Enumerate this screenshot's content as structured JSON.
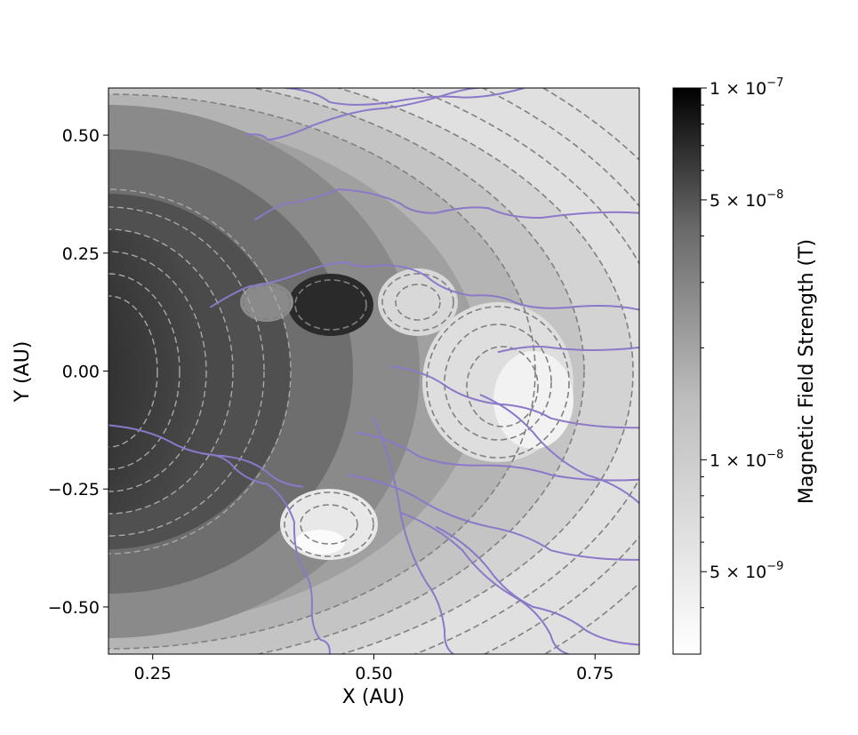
{
  "chart_data": {
    "type": "heatmap",
    "title": "",
    "xlabel": "X (AU)",
    "ylabel": "Y (AU)",
    "xlim": [
      0.2,
      0.8
    ],
    "ylim": [
      -0.6,
      0.6
    ],
    "x_ticks": [
      {
        "value": 0.25,
        "label": "0.25"
      },
      {
        "value": 0.5,
        "label": "0.50"
      },
      {
        "value": 0.75,
        "label": "0.75"
      }
    ],
    "y_ticks": [
      {
        "value": 0.5,
        "label": "0.50"
      },
      {
        "value": 0.25,
        "label": "0.25"
      },
      {
        "value": 0.0,
        "label": "0.00"
      },
      {
        "value": -0.25,
        "label": "−0.25"
      },
      {
        "value": -0.5,
        "label": "−0.50"
      }
    ],
    "colorbar": {
      "label": "Magnetic Field Strength (T)",
      "scale": "log",
      "range": [
        3e-09,
        1e-07
      ],
      "ticks": [
        {
          "value": 1e-07,
          "label": "1 × 10",
          "exp": "−7"
        },
        {
          "value": 5e-08,
          "label": "5 × 10",
          "exp": "−8"
        },
        {
          "value": 1e-08,
          "label": "1 × 10",
          "exp": "−8"
        },
        {
          "value": 5e-09,
          "label": "5 × 10",
          "exp": "−9"
        }
      ],
      "colormap": "gray_r"
    },
    "contour_style": {
      "color": "#808080",
      "linestyle": "dashed"
    },
    "field_line_color": "#8c78c8",
    "field_lines": [
      {
        "points": [
          [
            0.4,
            0.6
          ],
          [
            0.45,
            0.57
          ],
          [
            0.52,
            0.57
          ],
          [
            0.6,
            0.58
          ],
          [
            0.67,
            0.6
          ]
        ]
      },
      {
        "points": [
          [
            0.355,
            0.5
          ],
          [
            0.38,
            0.49
          ],
          [
            0.43,
            0.52
          ],
          [
            0.5,
            0.555
          ],
          [
            0.58,
            0.585
          ],
          [
            0.63,
            0.6
          ]
        ]
      },
      {
        "points": [
          [
            0.365,
            0.32
          ],
          [
            0.4,
            0.355
          ],
          [
            0.46,
            0.385
          ],
          [
            0.53,
            0.355
          ],
          [
            0.57,
            0.335
          ],
          [
            0.63,
            0.345
          ],
          [
            0.69,
            0.325
          ],
          [
            0.8,
            0.335
          ]
        ]
      },
      {
        "points": [
          [
            0.315,
            0.135
          ],
          [
            0.36,
            0.18
          ],
          [
            0.42,
            0.21
          ],
          [
            0.47,
            0.23
          ],
          [
            0.51,
            0.225
          ],
          [
            0.56,
            0.2
          ],
          [
            0.61,
            0.16
          ],
          [
            0.66,
            0.145
          ],
          [
            0.72,
            0.135
          ],
          [
            0.8,
            0.13
          ]
        ]
      },
      {
        "points": [
          [
            0.2,
            -0.115
          ],
          [
            0.27,
            -0.15
          ],
          [
            0.33,
            -0.18
          ],
          [
            0.38,
            -0.215
          ],
          [
            0.42,
            -0.245
          ]
        ]
      },
      {
        "points": [
          [
            0.305,
            -0.175
          ],
          [
            0.34,
            -0.2
          ],
          [
            0.38,
            -0.24
          ],
          [
            0.41,
            -0.32
          ],
          [
            0.42,
            -0.42
          ],
          [
            0.43,
            -0.5
          ],
          [
            0.44,
            -0.57
          ],
          [
            0.45,
            -0.6
          ]
        ]
      },
      {
        "points": [
          [
            0.5,
            -0.1
          ],
          [
            0.53,
            -0.3
          ],
          [
            0.56,
            -0.45
          ],
          [
            0.58,
            -0.55
          ],
          [
            0.59,
            -0.6
          ]
        ]
      },
      {
        "points": [
          [
            0.52,
            0.01
          ],
          [
            0.58,
            -0.03
          ],
          [
            0.64,
            -0.07
          ],
          [
            0.7,
            -0.1
          ],
          [
            0.8,
            -0.12
          ]
        ]
      },
      {
        "points": [
          [
            0.48,
            -0.13
          ],
          [
            0.55,
            -0.18
          ],
          [
            0.62,
            -0.2
          ],
          [
            0.7,
            -0.22
          ],
          [
            0.8,
            -0.23
          ]
        ]
      },
      {
        "points": [
          [
            0.47,
            -0.22
          ],
          [
            0.55,
            -0.27
          ],
          [
            0.63,
            -0.33
          ],
          [
            0.7,
            -0.38
          ],
          [
            0.8,
            -0.4
          ]
        ]
      },
      {
        "points": [
          [
            0.53,
            -0.3
          ],
          [
            0.6,
            -0.38
          ],
          [
            0.66,
            -0.48
          ],
          [
            0.7,
            -0.56
          ],
          [
            0.72,
            -0.6
          ]
        ]
      },
      {
        "points": [
          [
            0.57,
            -0.33
          ],
          [
            0.63,
            -0.42
          ],
          [
            0.68,
            -0.5
          ],
          [
            0.74,
            -0.55
          ],
          [
            0.8,
            -0.58
          ]
        ]
      },
      {
        "points": [
          [
            0.64,
            0.04
          ],
          [
            0.7,
            0.05
          ],
          [
            0.8,
            0.05
          ]
        ]
      },
      {
        "points": [
          [
            0.62,
            -0.05
          ],
          [
            0.68,
            -0.13
          ],
          [
            0.74,
            -0.22
          ],
          [
            0.8,
            -0.28
          ]
        ]
      }
    ]
  }
}
